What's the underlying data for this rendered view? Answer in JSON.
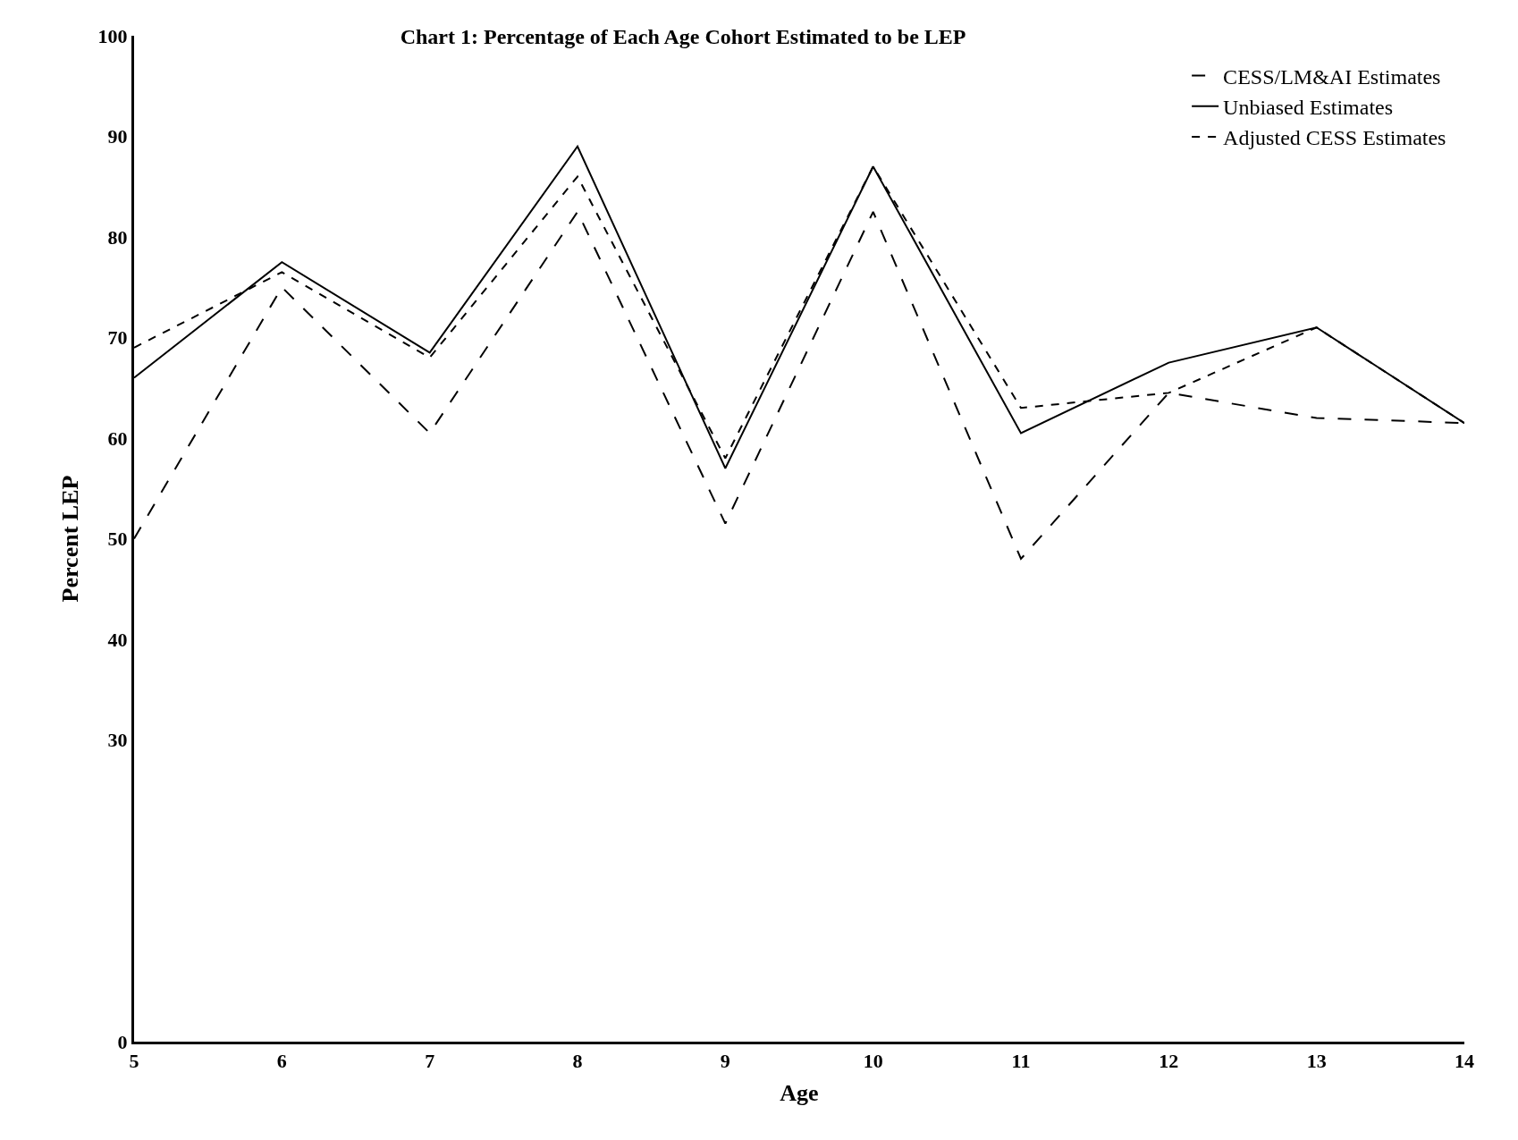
{
  "chart_data": {
    "type": "line",
    "title": "Chart 1: Percentage of Each Age Cohort Estimated to be LEP",
    "xlabel": "Age",
    "ylabel": "Percent LEP",
    "x": [
      5,
      6,
      7,
      8,
      9,
      10,
      11,
      12,
      13,
      14
    ],
    "series": [
      {
        "name": "CESS/LM&AI Estimates",
        "color": "#000000",
        "line_style": "longdashed",
        "values": [
          50,
          75,
          60.5,
          82.5,
          51.5,
          82.5,
          48,
          64.5,
          62,
          61.5
        ]
      },
      {
        "name": "Unbiased Estimates",
        "color": "#000000",
        "line_style": "solid",
        "values": [
          66,
          77.5,
          68.5,
          89,
          57,
          87,
          60.5,
          67.5,
          71,
          61.5
        ]
      },
      {
        "name": "Adjusted CESS Estimates",
        "color": "#000000",
        "line_style": "dashed",
        "values": [
          69,
          76.5,
          68,
          86,
          58,
          87,
          63,
          64.5,
          71,
          61.5
        ]
      }
    ],
    "xlim": [
      5,
      14
    ],
    "xticks": [
      5,
      6,
      7,
      8,
      9,
      10,
      11,
      12,
      13,
      14
    ],
    "ylim": [
      0,
      100
    ],
    "yticks": [
      0,
      30,
      40,
      50,
      60,
      70,
      80,
      90,
      100
    ],
    "legend": "top right",
    "marker": "none"
  }
}
